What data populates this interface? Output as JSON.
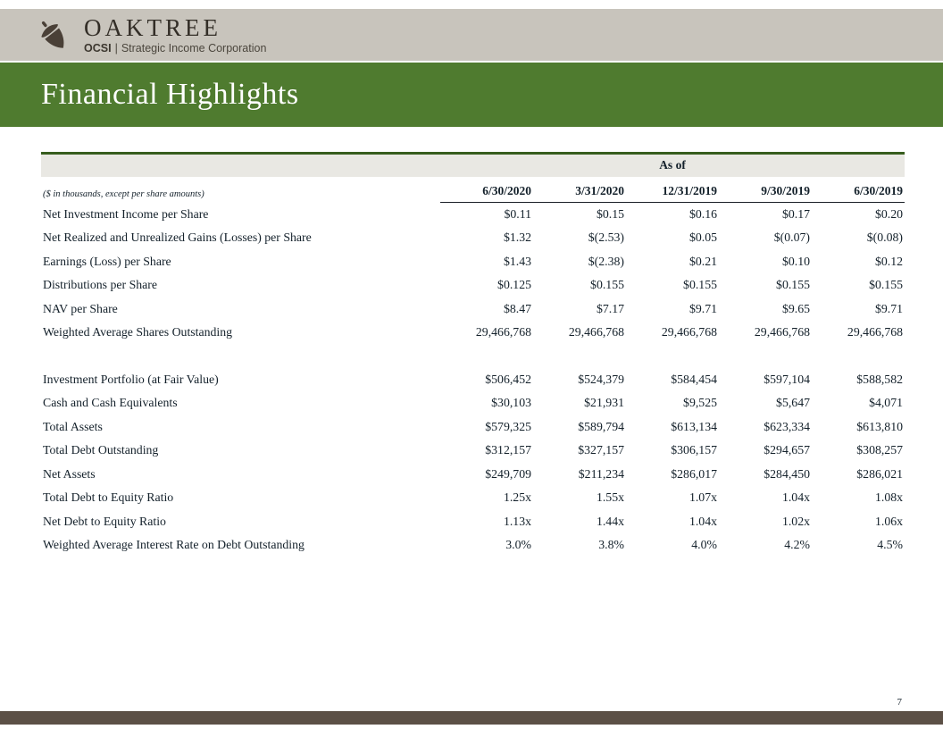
{
  "header": {
    "brand": "OAKTREE",
    "ticker": "OCSI",
    "separator": "|",
    "subtitle": "Strategic Income Corporation",
    "logo_icon": "acorn-icon"
  },
  "title_banner": {
    "title": "Financial Highlights"
  },
  "table": {
    "as_of_label": "As of",
    "caption": "($ in thousands, except per share amounts)",
    "columns": [
      "6/30/2020",
      "3/31/2020",
      "12/31/2019",
      "9/30/2019",
      "6/30/2019"
    ],
    "sections": [
      {
        "name": "per-share-metrics",
        "rows": [
          {
            "label": "Net Investment Income per Share",
            "values": [
              "$0.11",
              "$0.15",
              "$0.16",
              "$0.17",
              "$0.20"
            ]
          },
          {
            "label": "Net Realized and Unrealized Gains (Losses) per Share",
            "values": [
              "$1.32",
              "$(2.53)",
              "$0.05",
              "$(0.07)",
              "$(0.08)"
            ]
          },
          {
            "label": "Earnings (Loss) per Share",
            "values": [
              "$1.43",
              "$(2.38)",
              "$0.21",
              "$0.10",
              "$0.12"
            ]
          },
          {
            "label": "Distributions per Share",
            "values": [
              "$0.125",
              "$0.155",
              "$0.155",
              "$0.155",
              "$0.155"
            ]
          },
          {
            "label": "NAV per Share",
            "values": [
              "$8.47",
              "$7.17",
              "$9.71",
              "$9.65",
              "$9.71"
            ]
          },
          {
            "label": "Weighted Average Shares Outstanding",
            "values": [
              "29,466,768",
              "29,466,768",
              "29,466,768",
              "29,466,768",
              "29,466,768"
            ]
          }
        ]
      },
      {
        "name": "portfolio-and-balance-sheet",
        "rows": [
          {
            "label": "Investment Portfolio (at Fair Value)",
            "values": [
              "$506,452",
              "$524,379",
              "$584,454",
              "$597,104",
              "$588,582"
            ]
          },
          {
            "label": "Cash and Cash Equivalents",
            "values": [
              "$30,103",
              "$21,931",
              "$9,525",
              "$5,647",
              "$4,071"
            ]
          },
          {
            "label": "Total Assets",
            "values": [
              "$579,325",
              "$589,794",
              "$613,134",
              "$623,334",
              "$613,810"
            ]
          },
          {
            "label": "Total Debt Outstanding",
            "values": [
              "$312,157",
              "$327,157",
              "$306,157",
              "$294,657",
              "$308,257"
            ]
          },
          {
            "label": "Net Assets",
            "values": [
              "$249,709",
              "$211,234",
              "$286,017",
              "$284,450",
              "$286,021"
            ]
          },
          {
            "label": "Total Debt to Equity Ratio",
            "values": [
              "1.25x",
              "1.55x",
              "1.07x",
              "1.04x",
              "1.08x"
            ]
          },
          {
            "label": "Net Debt to Equity Ratio",
            "values": [
              "1.13x",
              "1.44x",
              "1.04x",
              "1.02x",
              "1.06x"
            ]
          },
          {
            "label": "Weighted Average Interest Rate on Debt Outstanding",
            "values": [
              "3.0%",
              "3.8%",
              "4.0%",
              "4.2%",
              "4.5%"
            ]
          }
        ]
      }
    ]
  },
  "footer": {
    "page_number": "7"
  },
  "colors": {
    "header_band": "#c8c4bc",
    "title_band_green": "#4f7b2f",
    "table_header_bg": "#e9e8e3",
    "table_top_border_green": "#375d1e",
    "footer_bar_brown": "#5c5046",
    "logo_brown": "#4a4037",
    "text": "#14212b"
  }
}
